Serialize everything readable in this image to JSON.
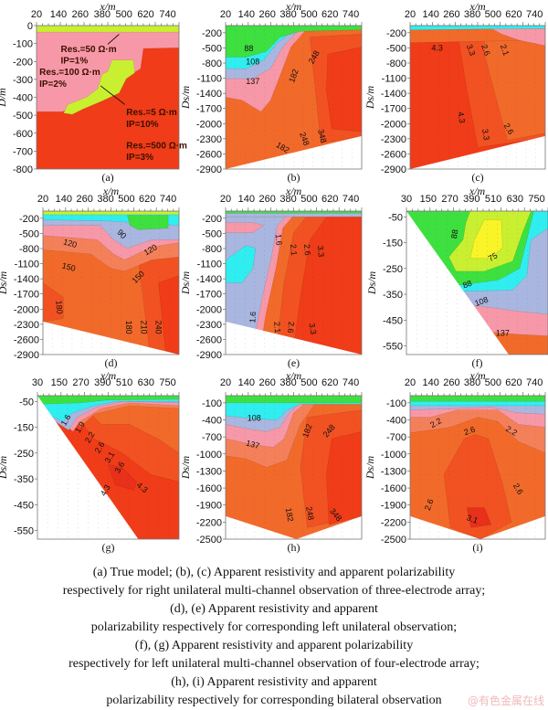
{
  "colors": {
    "red": "#f03c18",
    "red_dark": "#e8301a",
    "orange_red": "#f25222",
    "orange": "#f26a2a",
    "salmon": "#f4805a",
    "pink": "#f798a8",
    "light_blue": "#a9b6e0",
    "cyan": "#30eef0",
    "green": "#3ee040",
    "yellow_green": "#c8f030",
    "yellow": "#f8f428"
  },
  "panels": [
    {
      "id": "a",
      "caption": "(a)",
      "xlabel": "x/m",
      "ylabel": "D/m",
      "xticks": [
        "20",
        "140",
        "260",
        "380",
        "500",
        "620",
        "740"
      ],
      "yticks": [
        "0",
        "-100",
        "-200",
        "-300",
        "-400",
        "-500",
        "-600",
        "-700",
        "-800"
      ],
      "annotations": [
        "Res.=50 Ω·m",
        "IP=1%",
        "Res.=100 Ω·m",
        "IP=2%",
        "Res.=5  Ω·m",
        "IP=10%",
        "Res.=500 Ω·m",
        "IP=3%"
      ],
      "contour_labels": []
    },
    {
      "id": "b",
      "caption": "(b)",
      "xlabel": "x/m",
      "ylabel": "Ds/m",
      "xticks": [
        "20",
        "140",
        "260",
        "380",
        "500",
        "620",
        "740"
      ],
      "yticks": [
        "-200",
        "-500",
        "-800",
        "-1100",
        "-1400",
        "-1700",
        "-2000",
        "-2300",
        "-2600",
        "-2900"
      ],
      "contour_labels": [
        "88",
        "108",
        "137",
        "182",
        "248",
        "182",
        "248",
        "348"
      ]
    },
    {
      "id": "c",
      "caption": "(c)",
      "xlabel": "x/m",
      "ylabel": "Ds/m",
      "xticks": [
        "20",
        "140",
        "260",
        "380",
        "500",
        "620",
        "740"
      ],
      "yticks": [
        "-200",
        "-500",
        "-800",
        "-1100",
        "-1400",
        "-1700",
        "-2000",
        "-2300",
        "-2600",
        "-2900"
      ],
      "contour_labels": [
        "4.3",
        "3.3",
        "2.6",
        "2.1",
        "4.3",
        "3.3",
        "2.6"
      ]
    },
    {
      "id": "d",
      "caption": "(d)",
      "xlabel": "x/m",
      "ylabel": "Ds/m",
      "xticks": [
        "20",
        "140",
        "260",
        "380",
        "500",
        "620",
        "740"
      ],
      "yticks": [
        "-200",
        "-500",
        "-800",
        "-1100",
        "-1400",
        "-1700",
        "-2000",
        "-2300",
        "-2600",
        "-2900"
      ],
      "contour_labels": [
        "90",
        "120",
        "120",
        "150",
        "150",
        "180",
        "180",
        "210",
        "240"
      ]
    },
    {
      "id": "e",
      "caption": "(e)",
      "xlabel": "x/m",
      "ylabel": "Ds/m",
      "xticks": [
        "20",
        "140",
        "260",
        "380",
        "500",
        "620",
        "740"
      ],
      "yticks": [
        "-200",
        "-500",
        "-800",
        "-1100",
        "-1400",
        "-1700",
        "-2000",
        "-2300",
        "-2600",
        "-2900"
      ],
      "contour_labels": [
        "1.6",
        "2.1",
        "2.6",
        "3.3",
        "1.6",
        "2.1",
        "2.6",
        "3.3"
      ]
    },
    {
      "id": "f",
      "caption": "(f)",
      "xlabel": "x/m",
      "ylabel": "Ds/m",
      "xticks": [
        "30",
        "150",
        "270",
        "390",
        "510",
        "630",
        "750"
      ],
      "yticks": [
        "-50",
        "-150",
        "-250",
        "-350",
        "-450",
        "-550"
      ],
      "contour_labels": [
        "88",
        "75",
        "88",
        "108",
        "137"
      ]
    },
    {
      "id": "g",
      "caption": "(g)",
      "xlabel": "x/m",
      "ylabel": "Ds/m",
      "xticks": [
        "30",
        "150",
        "270",
        "390",
        "510",
        "630",
        "750"
      ],
      "yticks": [
        "-50",
        "-150",
        "-250",
        "-350",
        "-450",
        "-550"
      ],
      "contour_labels": [
        "1.6",
        "1.9",
        "2.2",
        "2.6",
        "3.1",
        "3.6",
        "4.3",
        "4.3"
      ]
    },
    {
      "id": "h",
      "caption": "(h)",
      "xlabel": "x/m",
      "ylabel": "Ds/m",
      "xticks": [
        "20",
        "140",
        "260",
        "380",
        "500",
        "620",
        "740"
      ],
      "yticks": [
        "-100",
        "-400",
        "-700",
        "-1000",
        "-1300",
        "-1600",
        "-1900",
        "-2200",
        "-2500"
      ],
      "contour_labels": [
        "108",
        "182",
        "248",
        "137",
        "182",
        "248",
        "348"
      ]
    },
    {
      "id": "i",
      "caption": "(i)",
      "xlabel": "x/m",
      "ylabel": "Ds/m",
      "xticks": [
        "20",
        "140",
        "260",
        "380",
        "500",
        "620",
        "740"
      ],
      "yticks": [
        "-100",
        "-400",
        "-700",
        "-1000",
        "-1300",
        "-1600",
        "-1900",
        "-2200",
        "-2500"
      ],
      "contour_labels": [
        "2.2",
        "2.6",
        "2.2",
        "2.6",
        "2.6",
        "3.1"
      ]
    }
  ],
  "caption_lines": [
    "(a) True model; (b), (c) Apparent resistivity and apparent polarizability",
    "respectively for right unilateral multi-channel observation of three-electrode array;",
    "(d), (e) Apparent resistivity and apparent",
    "polarizability respectively for corresponding left unilateral observation;",
    "(f), (g) Apparent resistivity and apparent polarizability",
    "respectively for left unilateral multi-channel observation of four-electrode array;",
    "(h), (i) Apparent resistivity and apparent",
    "polarizability respectively for corresponding bilateral observation"
  ],
  "watermark": "@有色金属在线"
}
